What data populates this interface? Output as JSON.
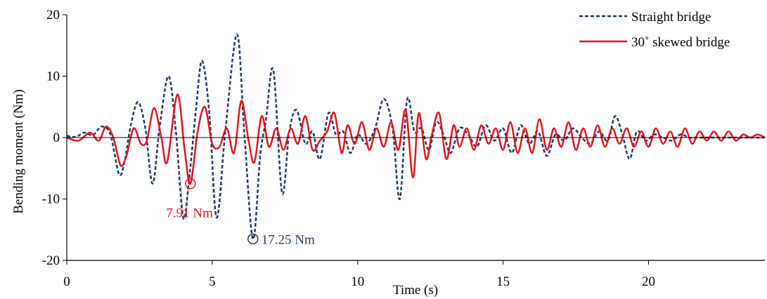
{
  "chart_data": {
    "type": "line",
    "title": "",
    "xlabel": "Time (s)",
    "ylabel": "Bending moment (Nm)",
    "xlim": [
      0,
      24
    ],
    "ylim": [
      -20,
      20
    ],
    "x_ticks": [
      0,
      5,
      10,
      15,
      20
    ],
    "y_ticks": [
      -20,
      -10,
      0,
      10,
      20
    ],
    "x_tick_labels": [
      "0",
      "5",
      "10",
      "15",
      "20"
    ],
    "y_tick_labels": [
      "-20",
      "-10",
      "0",
      "10",
      "20"
    ],
    "grid": false,
    "legend_position": "top-right",
    "series": [
      {
        "name": "Straight bridge",
        "color": "#1f3864",
        "dash": "dashed",
        "x": [
          0,
          0.3,
          0.6,
          0.9,
          1.2,
          1.5,
          1.8,
          2.0,
          2.2,
          2.45,
          2.7,
          2.95,
          3.2,
          3.5,
          3.75,
          4.0,
          4.2,
          4.45,
          4.65,
          4.9,
          5.15,
          5.45,
          5.85,
          6.1,
          6.4,
          6.65,
          6.85,
          7.1,
          7.4,
          7.65,
          7.9,
          8.2,
          8.45,
          8.7,
          9.0,
          9.25,
          9.5,
          9.75,
          10.0,
          10.3,
          10.6,
          10.9,
          11.2,
          11.45,
          11.7,
          11.95,
          12.2,
          12.45,
          12.7,
          12.95,
          13.2,
          13.5,
          13.8,
          14.1,
          14.4,
          14.7,
          15.0,
          15.3,
          15.6,
          15.9,
          16.2,
          16.5,
          16.8,
          17.1,
          17.4,
          17.7,
          18.0,
          18.3,
          18.6,
          18.85,
          19.1,
          19.35,
          19.6,
          19.9,
          20.2,
          20.5,
          20.8,
          21.1,
          21.4,
          21.7,
          22.0,
          22.5,
          23.0,
          23.5,
          24.0
        ],
        "y": [
          0.3,
          0.1,
          0.8,
          0.4,
          1.8,
          0.5,
          -6.0,
          -3.5,
          2.0,
          5.8,
          1.5,
          -7.5,
          2.0,
          10.0,
          1.0,
          -13.0,
          -7.0,
          5.0,
          12.5,
          4.0,
          -13.0,
          1.0,
          16.8,
          1.0,
          -16.5,
          -3.0,
          3.0,
          11.0,
          -9.0,
          1.0,
          4.5,
          -1.0,
          1.0,
          -3.5,
          4.0,
          0.5,
          1.0,
          -2.5,
          0.5,
          -1.0,
          1.5,
          6.3,
          1.5,
          -10.0,
          6.2,
          1.0,
          1.5,
          -2.0,
          2.5,
          0.5,
          -2.5,
          1.5,
          0.5,
          -1.5,
          2.0,
          -0.5,
          1.5,
          -2.5,
          2.0,
          -1.0,
          1.0,
          -3.0,
          0.5,
          -0.5,
          1.5,
          0.0,
          -1.0,
          1.0,
          -0.5,
          3.5,
          0.5,
          -3.5,
          1.0,
          -0.5,
          0.5,
          0.0,
          -0.5,
          0.5,
          0.0,
          0.0,
          0.0,
          0.0,
          0.0,
          0.0,
          0.0
        ]
      },
      {
        "name": "30˚ skewed bridge",
        "color": "#e8141b",
        "dash": "solid",
        "x": [
          0,
          0.4,
          0.8,
          1.1,
          1.35,
          1.6,
          1.85,
          2.05,
          2.3,
          2.55,
          2.75,
          3.0,
          3.25,
          3.45,
          3.8,
          4.05,
          4.25,
          4.5,
          4.75,
          5.0,
          5.25,
          5.5,
          5.75,
          6.0,
          6.25,
          6.45,
          6.7,
          6.95,
          7.2,
          7.45,
          7.7,
          7.95,
          8.2,
          8.45,
          8.7,
          8.95,
          9.2,
          9.45,
          9.65,
          9.9,
          10.15,
          10.4,
          10.65,
          10.9,
          11.15,
          11.4,
          11.65,
          11.9,
          12.1,
          12.35,
          12.55,
          12.8,
          13.05,
          13.3,
          13.5,
          13.75,
          14.0,
          14.25,
          14.5,
          14.75,
          15.0,
          15.25,
          15.5,
          15.75,
          16.0,
          16.25,
          16.5,
          16.75,
          17.0,
          17.25,
          17.5,
          17.75,
          18.0,
          18.25,
          18.5,
          18.75,
          19.0,
          19.25,
          19.5,
          19.75,
          20.0,
          20.25,
          20.5,
          20.75,
          21.0,
          21.25,
          21.5,
          21.75,
          22.0,
          22.25,
          22.5,
          22.75,
          23.0,
          23.25,
          23.5,
          23.75,
          24.0
        ],
        "y": [
          0.0,
          -0.5,
          0.8,
          -0.5,
          1.8,
          0.0,
          -4.5,
          -3.0,
          1.5,
          -1.0,
          -0.5,
          4.8,
          0.0,
          -4.0,
          7.0,
          -2.0,
          -7.5,
          1.0,
          5.0,
          -1.0,
          -1.5,
          1.5,
          -2.5,
          6.0,
          -0.5,
          -4.0,
          3.5,
          -1.5,
          1.5,
          -2.0,
          1.5,
          -1.0,
          3.5,
          -2.0,
          -0.5,
          1.0,
          4.0,
          -2.5,
          2.0,
          -1.0,
          2.5,
          -2.0,
          1.5,
          -1.5,
          2.5,
          -2.0,
          4.5,
          -6.5,
          4.0,
          -3.5,
          0.5,
          4.0,
          -3.5,
          2.0,
          -1.5,
          1.5,
          -2.0,
          2.0,
          -1.0,
          1.5,
          -2.0,
          2.5,
          -2.5,
          1.5,
          -2.5,
          3.0,
          -2.0,
          1.5,
          -1.5,
          2.5,
          -2.0,
          1.5,
          -1.5,
          2.0,
          -1.5,
          1.5,
          -1.0,
          1.5,
          -1.5,
          1.0,
          -1.5,
          1.5,
          -1.0,
          1.0,
          -1.5,
          1.5,
          -1.0,
          1.0,
          -0.5,
          1.0,
          -0.5,
          1.0,
          -0.5,
          0.5,
          0.0,
          0.5,
          0.0
        ]
      }
    ],
    "faded_dips": [
      {
        "x": [
          3.9,
          4.05,
          4.2
        ],
        "y": [
          -7.0,
          -13.3,
          -7.0
        ]
      },
      {
        "x": [
          5.0,
          5.15,
          5.35
        ],
        "y": [
          -7.5,
          -13.0,
          -7.5
        ]
      }
    ],
    "annotations": [
      {
        "text": "7.91 Nm",
        "x": 4.25,
        "y": -7.5,
        "color": "#e8141b"
      },
      {
        "text": "17.25 Nm",
        "x": 6.4,
        "y": -16.5,
        "color": "#1f3864"
      }
    ]
  }
}
